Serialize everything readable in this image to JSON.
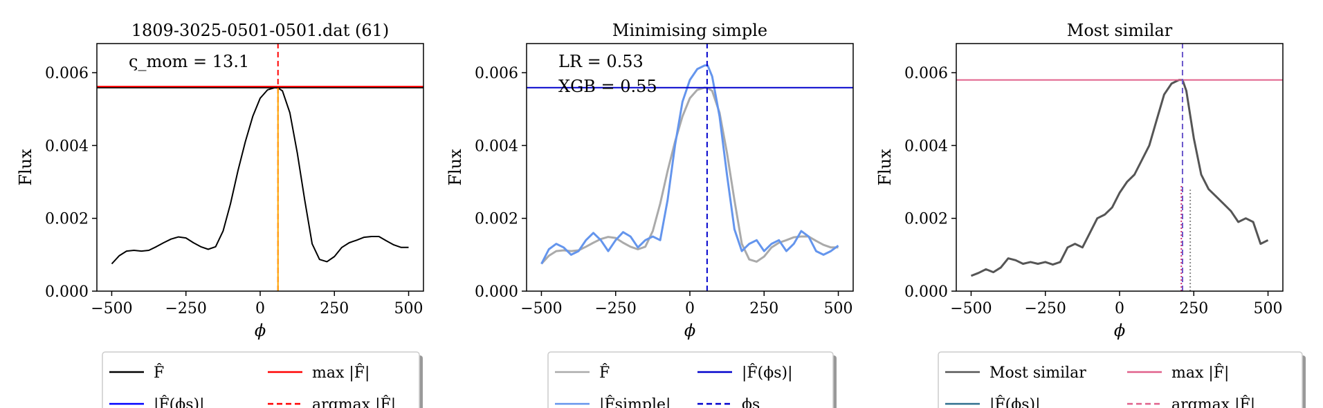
{
  "chart_data": [
    {
      "type": "line",
      "title": "1809-3025-0501-0501.dat (61)",
      "xlabel": "ϕ",
      "ylabel": "Flux",
      "xlim": [
        -550,
        550
      ],
      "ylim": [
        0,
        0.0068
      ],
      "xticks": [
        -500,
        -250,
        0,
        250,
        500
      ],
      "xtick_labels": [
        "−500",
        "−250",
        "0",
        "250",
        "500"
      ],
      "yticks": [
        0,
        0.002,
        0.004,
        0.006
      ],
      "ytick_labels": [
        "0.000",
        "0.002",
        "0.004",
        "0.006"
      ],
      "annotations": [
        "ς_mom = 13.1"
      ],
      "hlines": [
        {
          "y": 0.00559,
          "color": "#000000",
          "style": "solid"
        },
        {
          "y": 0.00562,
          "color": "#ff0000",
          "style": "solid"
        }
      ],
      "vlines": [
        {
          "x": 60,
          "color": "#ff0000",
          "style": "dashed",
          "ymax": 1.0
        },
        {
          "x": 60,
          "color": "#ffa500",
          "style": "solid",
          "ymax": 0.82
        }
      ],
      "series": [
        {
          "color": "#000000",
          "x": [
            -500,
            -475,
            -450,
            -425,
            -400,
            -375,
            -350,
            -325,
            -300,
            -275,
            -250,
            -225,
            -200,
            -175,
            -150,
            -125,
            -100,
            -75,
            -50,
            -25,
            0,
            25,
            50,
            60,
            75,
            100,
            125,
            150,
            175,
            200,
            225,
            250,
            275,
            300,
            325,
            350,
            375,
            400,
            425,
            450,
            475,
            500
          ],
          "y": [
            0.00075,
            0.00097,
            0.0011,
            0.00112,
            0.0011,
            0.00112,
            0.00122,
            0.00133,
            0.00143,
            0.00149,
            0.00146,
            0.00133,
            0.00122,
            0.00115,
            0.00122,
            0.00165,
            0.0024,
            0.0033,
            0.0041,
            0.0048,
            0.0053,
            0.00553,
            0.00559,
            0.00558,
            0.0055,
            0.0049,
            0.0038,
            0.0025,
            0.0013,
            0.00087,
            0.00081,
            0.00095,
            0.0012,
            0.00133,
            0.0014,
            0.00148,
            0.0015,
            0.0015,
            0.00138,
            0.00127,
            0.0012,
            0.0012
          ]
        }
      ],
      "legend": [
        {
          "label": "F̂",
          "color": "#000000",
          "style": "solid"
        },
        {
          "label": "max |F̂|",
          "color": "#ff0000",
          "style": "solid"
        },
        {
          "label": "|F̂(ϕs)|",
          "color": "#0000ff",
          "style": "solid"
        },
        {
          "label": "argmax |F̂|",
          "color": "#ff0000",
          "style": "dashed"
        }
      ]
    },
    {
      "type": "line",
      "title": "Minimising simple",
      "xlabel": "ϕ",
      "ylabel": "Flux",
      "xlim": [
        -550,
        550
      ],
      "ylim": [
        0,
        0.0068
      ],
      "xticks": [
        -500,
        -250,
        0,
        250,
        500
      ],
      "xtick_labels": [
        "−500",
        "−250",
        "0",
        "250",
        "500"
      ],
      "yticks": [
        0,
        0.002,
        0.004,
        0.006
      ],
      "ytick_labels": [
        "0.000",
        "0.002",
        "0.004",
        "0.006"
      ],
      "annotations": [
        "LR = 0.53",
        "XGB = 0.55"
      ],
      "hlines": [
        {
          "y": 0.00559,
          "color": "#0000cc",
          "style": "solid"
        }
      ],
      "vlines": [
        {
          "x": 58,
          "color": "#0000cc",
          "style": "dashed",
          "ymax": 1.0
        }
      ],
      "series": [
        {
          "name": "F̂",
          "color": "#aaaaaa",
          "x": [
            -500,
            -475,
            -450,
            -425,
            -400,
            -375,
            -350,
            -325,
            -300,
            -275,
            -250,
            -225,
            -200,
            -175,
            -150,
            -125,
            -100,
            -75,
            -50,
            -25,
            0,
            25,
            50,
            60,
            75,
            100,
            125,
            150,
            175,
            200,
            225,
            250,
            275,
            300,
            325,
            350,
            375,
            400,
            425,
            450,
            475,
            500
          ],
          "y": [
            0.00075,
            0.00097,
            0.0011,
            0.00112,
            0.0011,
            0.00112,
            0.00122,
            0.00133,
            0.00143,
            0.00149,
            0.00146,
            0.00133,
            0.00122,
            0.00115,
            0.00122,
            0.00165,
            0.0024,
            0.0033,
            0.0041,
            0.0048,
            0.0053,
            0.00553,
            0.00559,
            0.00558,
            0.0055,
            0.0049,
            0.0038,
            0.0025,
            0.0013,
            0.00087,
            0.00081,
            0.00095,
            0.0012,
            0.00133,
            0.0014,
            0.00148,
            0.0015,
            0.0015,
            0.00138,
            0.00127,
            0.0012,
            0.0012
          ]
        },
        {
          "name": "|F̂simple|",
          "color": "#6495ed",
          "x": [
            -500,
            -475,
            -450,
            -425,
            -400,
            -375,
            -350,
            -325,
            -300,
            -275,
            -250,
            -225,
            -200,
            -175,
            -150,
            -125,
            -100,
            -75,
            -50,
            -25,
            0,
            25,
            50,
            60,
            75,
            100,
            125,
            150,
            175,
            200,
            225,
            250,
            275,
            300,
            325,
            350,
            375,
            400,
            425,
            450,
            475,
            500
          ],
          "y": [
            0.00075,
            0.00115,
            0.0013,
            0.0012,
            0.001,
            0.0011,
            0.0014,
            0.0016,
            0.0014,
            0.0011,
            0.0014,
            0.00162,
            0.0015,
            0.0012,
            0.0014,
            0.0015,
            0.0014,
            0.0025,
            0.004,
            0.0052,
            0.0058,
            0.0061,
            0.0062,
            0.0062,
            0.0059,
            0.0048,
            0.0032,
            0.0017,
            0.0011,
            0.0013,
            0.0014,
            0.0011,
            0.0013,
            0.0014,
            0.0011,
            0.0013,
            0.00165,
            0.0015,
            0.0011,
            0.001,
            0.0011,
            0.00125
          ]
        }
      ],
      "legend": [
        {
          "label": "F̂",
          "color": "#aaaaaa",
          "style": "solid"
        },
        {
          "label": "|F̂(ϕs)|",
          "color": "#0000cc",
          "style": "solid"
        },
        {
          "label": "|F̂simple|",
          "color": "#6495ed",
          "style": "solid"
        },
        {
          "label": "ϕs",
          "color": "#0000cc",
          "style": "dashed"
        }
      ]
    },
    {
      "type": "line",
      "title": "Most similar",
      "xlabel": "ϕ",
      "ylabel": "Flux",
      "xlim": [
        -550,
        550
      ],
      "ylim": [
        0,
        0.0068
      ],
      "xticks": [
        -500,
        -250,
        0,
        250,
        500
      ],
      "xtick_labels": [
        "−500",
        "−250",
        "0",
        "250",
        "500"
      ],
      "yticks": [
        0,
        0.002,
        0.004,
        0.006
      ],
      "ytick_labels": [
        "0.000",
        "0.002",
        "0.004",
        "0.006"
      ],
      "annotations": [],
      "hlines": [
        {
          "y": 0.0058,
          "color": "#e0608a",
          "style": "solid"
        }
      ],
      "vlines": [
        {
          "x": 212,
          "color": "#e0608a",
          "style": "dashed",
          "ymax": 1.0
        },
        {
          "x": 212,
          "color": "#6a5acd",
          "style": "dashed",
          "ymax": 1.0
        },
        {
          "x": 208,
          "color": "#cc3377",
          "style": "dotted",
          "ymax": 0.43
        },
        {
          "x": 238,
          "color": "#888888",
          "style": "dotted",
          "ymax": 0.41
        }
      ],
      "series": [
        {
          "name": "Most similar",
          "color": "#555555",
          "x": [
            -500,
            -475,
            -450,
            -425,
            -400,
            -375,
            -350,
            -325,
            -300,
            -275,
            -250,
            -225,
            -200,
            -175,
            -150,
            -125,
            -100,
            -75,
            -50,
            -25,
            0,
            25,
            50,
            75,
            100,
            125,
            150,
            175,
            200,
            212,
            225,
            250,
            275,
            300,
            325,
            350,
            375,
            400,
            425,
            450,
            475,
            500
          ],
          "y": [
            0.00042,
            0.0005,
            0.0006,
            0.00052,
            0.00065,
            0.0009,
            0.00085,
            0.00075,
            0.0008,
            0.00075,
            0.0008,
            0.00073,
            0.0008,
            0.0012,
            0.0013,
            0.0012,
            0.0016,
            0.002,
            0.0021,
            0.0023,
            0.0027,
            0.003,
            0.0032,
            0.0036,
            0.004,
            0.0047,
            0.0054,
            0.0057,
            0.0058,
            0.0058,
            0.0055,
            0.0042,
            0.0032,
            0.0028,
            0.0026,
            0.0024,
            0.0022,
            0.0019,
            0.002,
            0.0019,
            0.0013,
            0.0014
          ]
        }
      ],
      "legend": [
        {
          "label": "Most similar",
          "color": "#555555",
          "style": "solid"
        },
        {
          "label": "max |F̂|",
          "color": "#e0608a",
          "style": "solid"
        },
        {
          "label": "|F̂(ϕs)|",
          "color": "#2e6f8e",
          "style": "solid"
        },
        {
          "label": "argmax |F̂|",
          "color": "#e0608a",
          "style": "dashed"
        }
      ]
    }
  ]
}
